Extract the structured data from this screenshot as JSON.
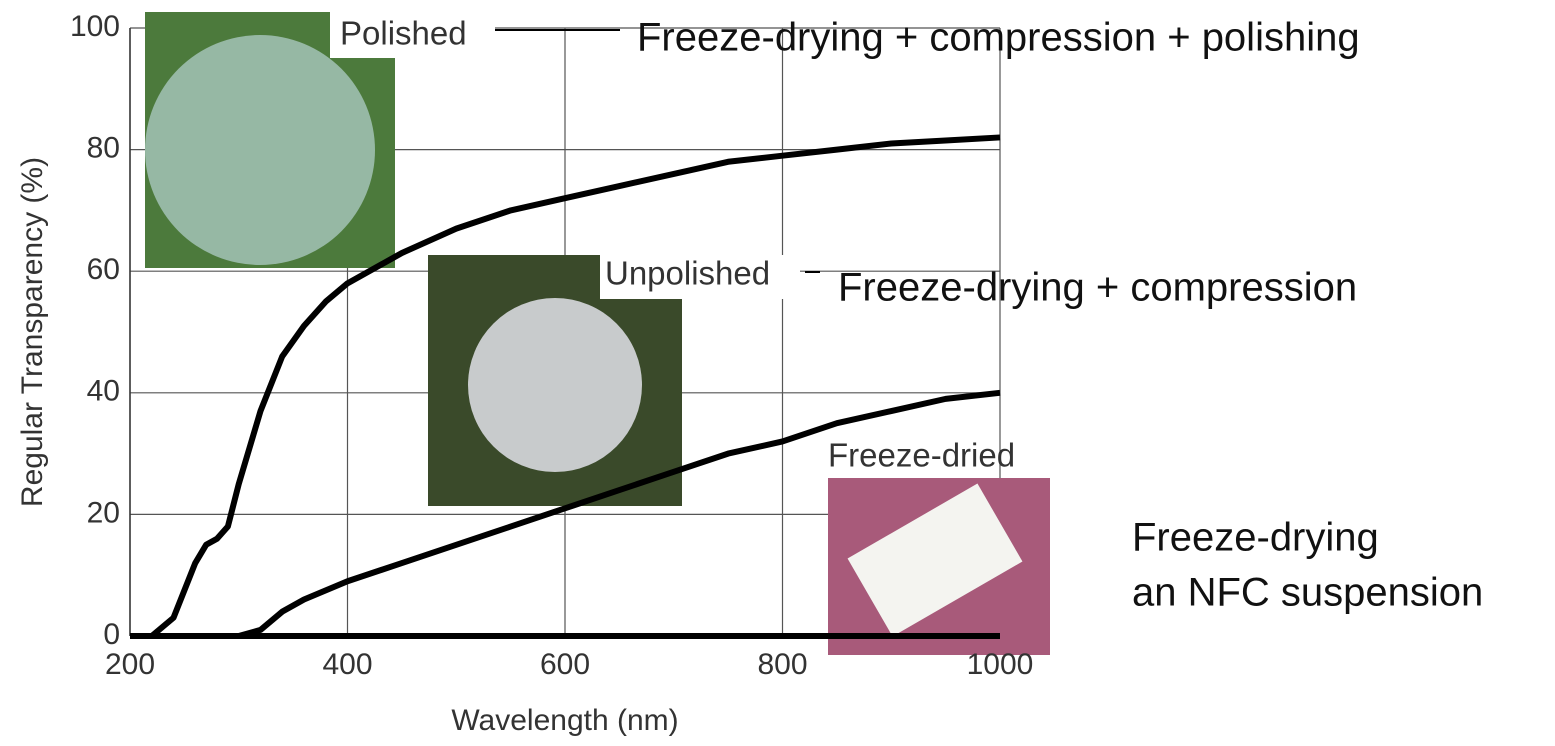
{
  "chart_data": {
    "type": "line",
    "xlabel": "Wavelength (nm)",
    "ylabel": "Regular Transparency (%)",
    "xlim": [
      200,
      1000
    ],
    "xticks": [
      200,
      400,
      600,
      800,
      1000
    ],
    "ylim": [
      0,
      100
    ],
    "yticks": [
      0,
      20,
      40,
      60,
      80,
      100
    ],
    "grid": true,
    "photo_labels": [
      "Polished",
      "Unpolished",
      "Freeze-dried"
    ],
    "annotations": [
      "Freeze-drying + compression + polishing",
      "Freeze-drying + compression",
      "Freeze-drying",
      "an NFC suspension"
    ],
    "series": [
      {
        "color": "#000000",
        "x": [
          200,
          220,
          240,
          260,
          270,
          280,
          290,
          300,
          320,
          340,
          360,
          380,
          400,
          450,
          500,
          550,
          600,
          650,
          700,
          750,
          800,
          850,
          900,
          950,
          1000
        ],
        "values": [
          0,
          0,
          3,
          12,
          15,
          16,
          18,
          25,
          37,
          46,
          51,
          55,
          58,
          63,
          67,
          70,
          72,
          74,
          76,
          78,
          79,
          80,
          81,
          81.5,
          82
        ]
      },
      {
        "color": "#000000",
        "x": [
          200,
          300,
          320,
          340,
          360,
          400,
          450,
          500,
          550,
          600,
          650,
          700,
          750,
          800,
          850,
          900,
          950,
          1000
        ],
        "values": [
          0,
          0,
          1,
          4,
          6,
          9,
          12,
          15,
          18,
          21,
          24,
          27,
          30,
          32,
          35,
          37,
          39,
          40
        ]
      },
      {
        "color": "#000000",
        "x": [
          200,
          1000
        ],
        "values": [
          0,
          0
        ]
      }
    ]
  }
}
